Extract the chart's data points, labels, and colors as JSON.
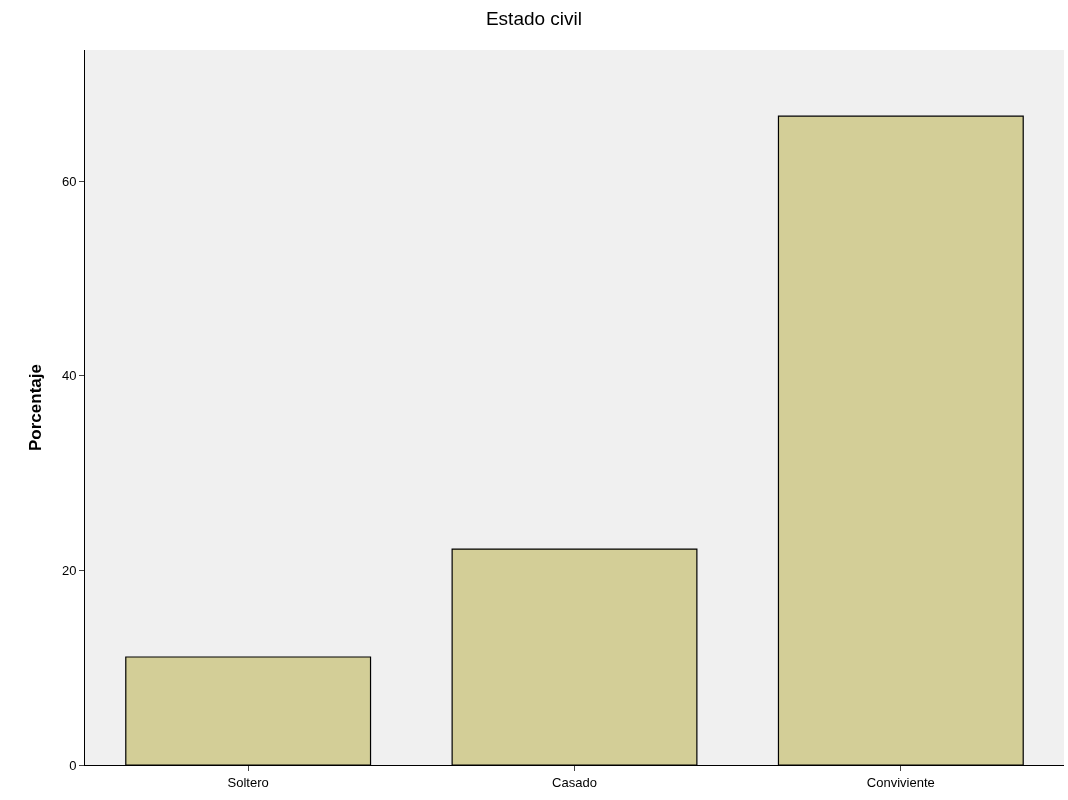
{
  "chart_data": {
    "type": "bar",
    "title": "Estado civil",
    "ylabel": "Porcentaje",
    "categories": [
      "Soltero",
      "Casado",
      "Conviviente"
    ],
    "values": [
      11.1,
      22.2,
      66.7
    ],
    "color": "#d3ce97",
    "ylim": [
      0,
      73.5
    ],
    "yticks": [
      0,
      20,
      40,
      60
    ],
    "grid": false,
    "legend": false
  }
}
